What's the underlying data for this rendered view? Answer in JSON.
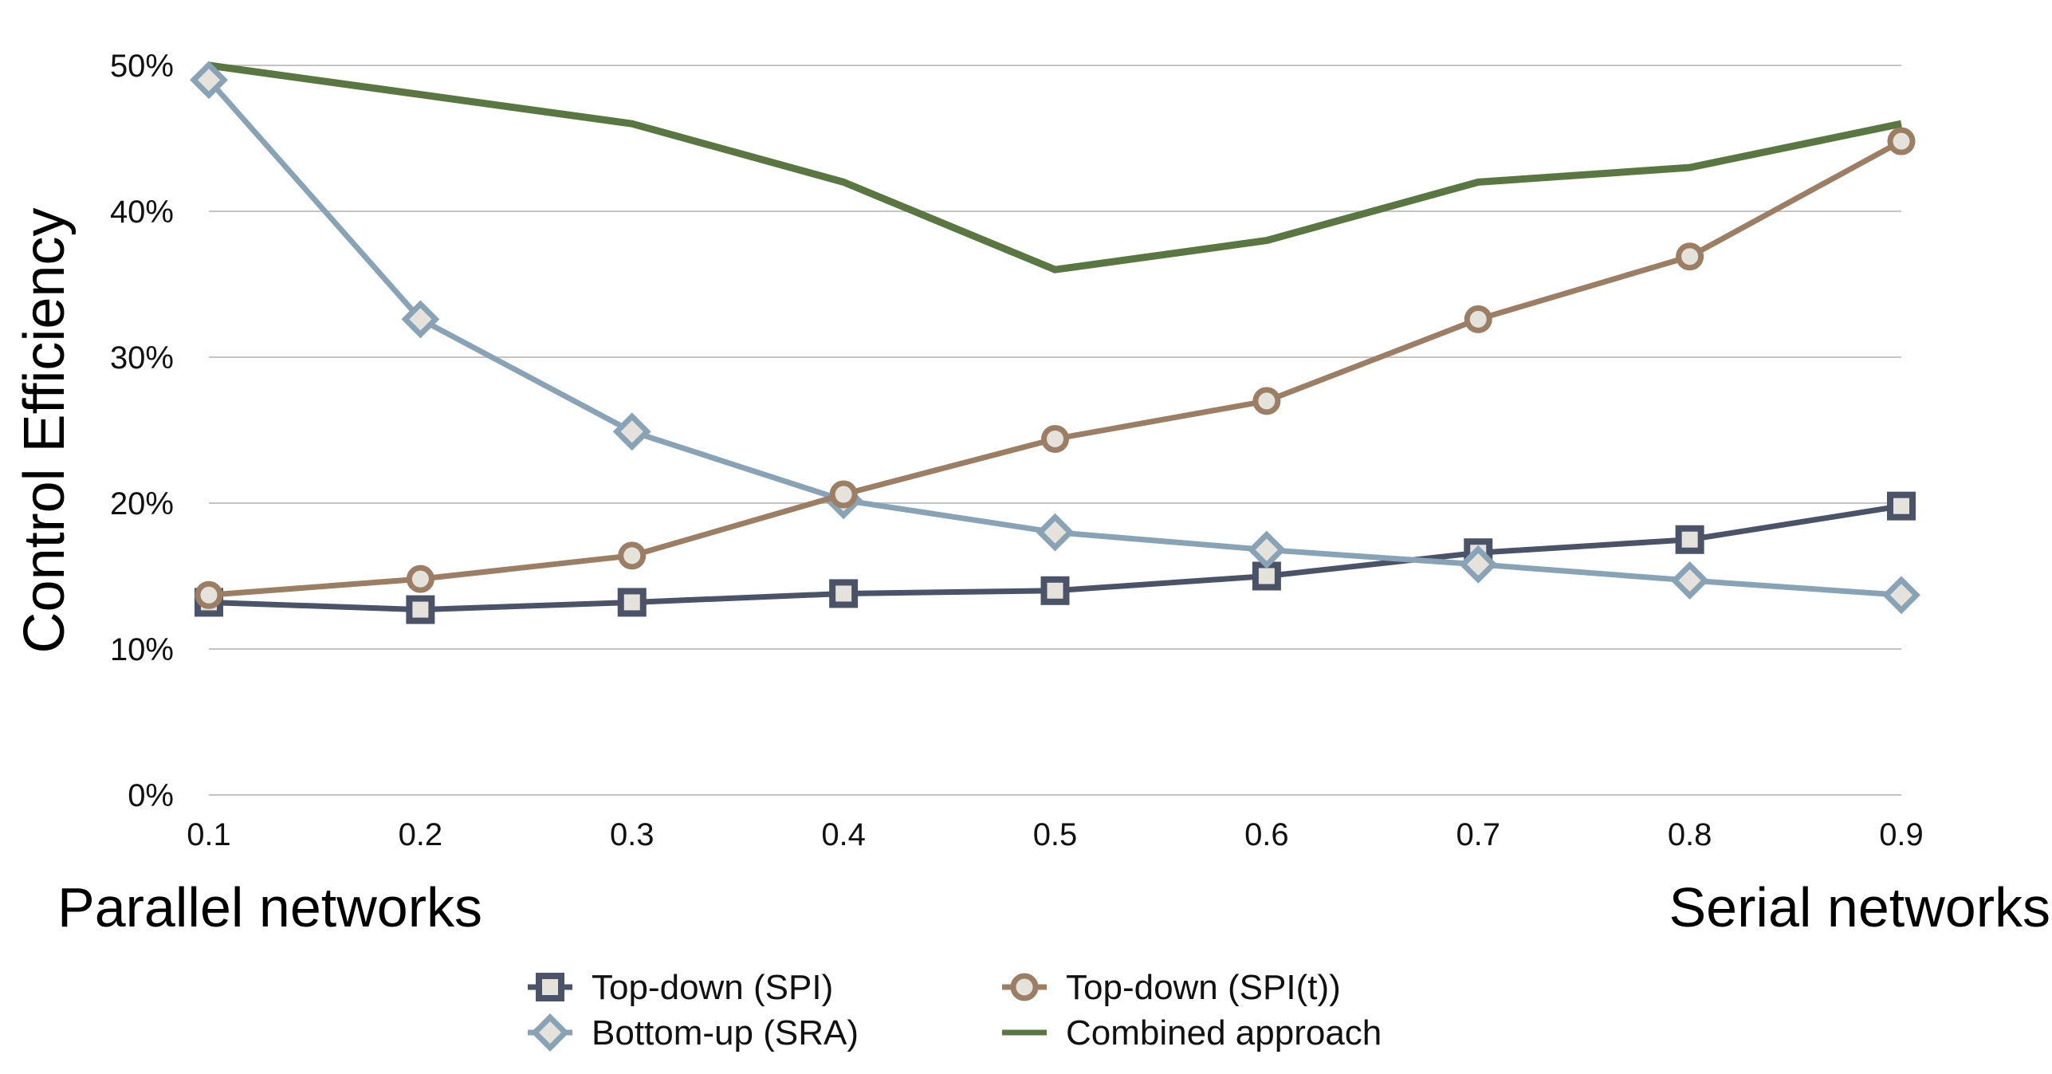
{
  "chart_data": {
    "type": "line",
    "title": "",
    "ylabel": "Control Efficiency",
    "xlabel_left": "Parallel networks",
    "xlabel_right": "Serial networks",
    "x": [
      0.1,
      0.2,
      0.3,
      0.4,
      0.5,
      0.6,
      0.7,
      0.8,
      0.9
    ],
    "x_tick_labels": [
      "0.1",
      "0.2",
      "0.3",
      "0.4",
      "0.5",
      "0.6",
      "0.7",
      "0.8",
      "0.9"
    ],
    "ylim": [
      0,
      50
    ],
    "y_ticks": [
      0,
      10,
      20,
      30,
      40,
      50
    ],
    "y_tick_labels": [
      "0%",
      "10%",
      "20%",
      "30%",
      "40%",
      "50%"
    ],
    "grid": "horizontal",
    "legend_position": "bottom-center",
    "series": [
      {
        "name": "Top-down (SPI)",
        "marker": "square",
        "color": "#4a5368",
        "values": [
          13.2,
          12.7,
          13.2,
          13.8,
          14.0,
          15.0,
          16.6,
          17.5,
          19.8
        ]
      },
      {
        "name": "Bottom-up (SRA)",
        "marker": "diamond",
        "color": "#88a3b5",
        "values": [
          49.0,
          32.6,
          24.9,
          20.2,
          18.0,
          16.8,
          15.8,
          14.7,
          13.7
        ]
      },
      {
        "name": "Top-down (SPI(t))",
        "marker": "circle",
        "color": "#9b7e63",
        "values": [
          13.7,
          14.8,
          16.4,
          20.6,
          24.4,
          27.0,
          32.6,
          36.9,
          44.8
        ]
      },
      {
        "name": "Combined approach",
        "marker": "none",
        "color": "#5b7741",
        "values": [
          50.0,
          48.0,
          46.0,
          42.0,
          36.0,
          38.0,
          42.0,
          43.0,
          46.0
        ]
      }
    ]
  }
}
